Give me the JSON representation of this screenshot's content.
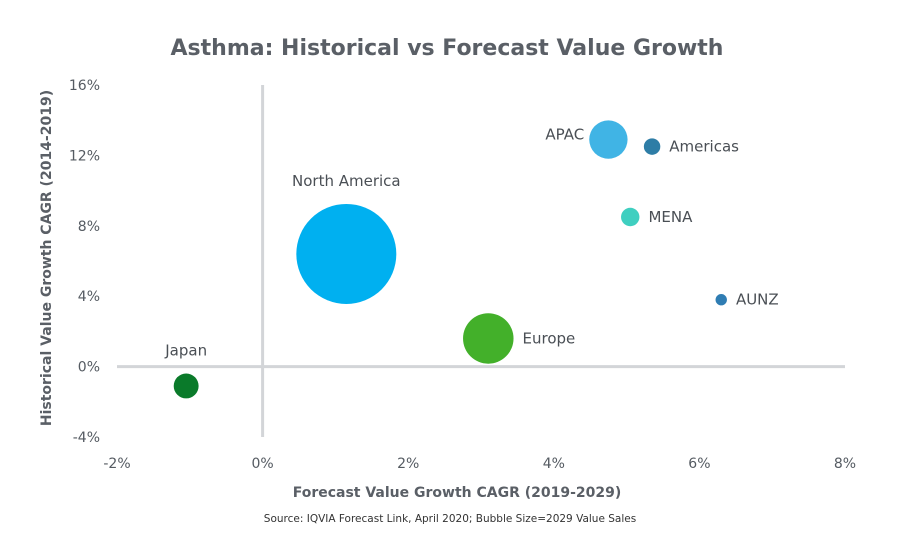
{
  "chart_data": {
    "type": "scatter",
    "title": "Asthma: Historical vs Forecast Value Growth",
    "xlabel": "Forecast Value Growth CAGR (2019-2029)",
    "ylabel": "Historical Value Growth CAGR (2014-2019)",
    "xlim": [
      -2,
      8
    ],
    "ylim": [
      -4,
      16
    ],
    "x_ticks": [
      -2,
      0,
      2,
      4,
      6,
      8
    ],
    "y_ticks": [
      -4,
      0,
      4,
      8,
      12,
      16
    ],
    "x_tick_labels": [
      "-2%",
      "0%",
      "2%",
      "4%",
      "6%",
      "8%"
    ],
    "y_tick_labels": [
      "-4%",
      "0%",
      "4%",
      "8%",
      "12%",
      "16%"
    ],
    "grid": false,
    "source": "Source: IQVIA Forecast Link, April 2020; Bubble Size=2029 Value Sales",
    "points": [
      {
        "label": "North America",
        "x": 1.15,
        "y": 6.4,
        "size": 100,
        "color": "#00b0f0",
        "label_pos": "above"
      },
      {
        "label": "Europe",
        "x": 3.1,
        "y": 1.6,
        "size": 25.5,
        "color": "#43b02a",
        "label_pos": "right"
      },
      {
        "label": "APAC",
        "x": 4.75,
        "y": 12.9,
        "size": 14.7,
        "color": "#40b4e5",
        "label_pos": "left"
      },
      {
        "label": "Americas",
        "x": 5.35,
        "y": 12.5,
        "size": 2.7,
        "color": "#2e7da6",
        "label_pos": "right"
      },
      {
        "label": "MENA",
        "x": 5.05,
        "y": 8.5,
        "size": 3.4,
        "color": "#3fcfc0",
        "label_pos": "right"
      },
      {
        "label": "AUNZ",
        "x": 6.3,
        "y": 3.8,
        "size": 1.3,
        "color": "#2f7db3",
        "label_pos": "right"
      },
      {
        "label": "Japan",
        "x": -1.05,
        "y": -1.1,
        "size": 6.2,
        "color": "#0a7a2a",
        "label_pos": "above"
      }
    ]
  }
}
